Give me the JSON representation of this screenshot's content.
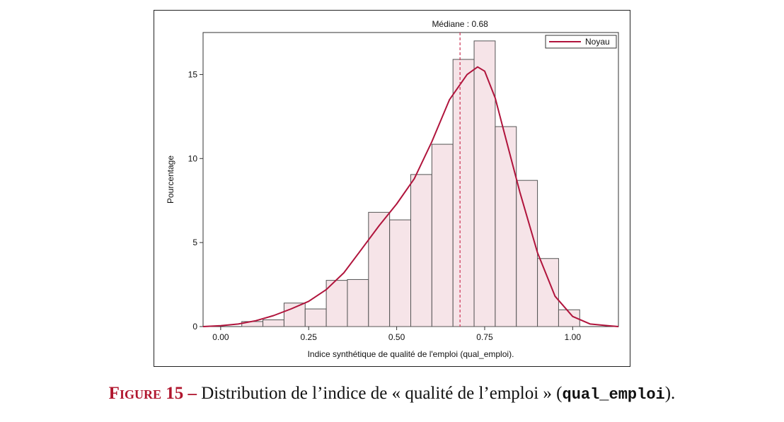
{
  "colors": {
    "bar_fill": "#f6e4e8",
    "bar_stroke": "#555555",
    "kernel_line": "#b0143c",
    "median_line": "#cc3355",
    "caption_accent": "#b0162e"
  },
  "chart_data": {
    "type": "bar",
    "subtype": "histogram",
    "title": "",
    "xlabel": "Indice synthétique de qualité de l'emploi (qual_emploi).",
    "ylabel": "Pourcentage",
    "xlim": [
      -0.05,
      1.13
    ],
    "ylim": [
      0,
      17.5
    ],
    "xticks": [
      0.0,
      0.25,
      0.5,
      0.75,
      1.0
    ],
    "xtick_labels": [
      "0.00",
      "0.25",
      "0.50",
      "0.75",
      "1.00"
    ],
    "yticks": [
      0,
      5,
      10,
      15
    ],
    "ytick_labels": [
      "0",
      "5",
      "10",
      "15"
    ],
    "grid": false,
    "legend": {
      "position": "top-right",
      "entries": [
        "Noyau"
      ]
    },
    "bins": [
      {
        "x0": 0.06,
        "x1": 0.12,
        "value": 0.3
      },
      {
        "x0": 0.12,
        "x1": 0.18,
        "value": 0.4
      },
      {
        "x0": 0.18,
        "x1": 0.24,
        "value": 1.4
      },
      {
        "x0": 0.24,
        "x1": 0.3,
        "value": 1.05
      },
      {
        "x0": 0.3,
        "x1": 0.36,
        "value": 2.75
      },
      {
        "x0": 0.36,
        "x1": 0.42,
        "value": 2.8
      },
      {
        "x0": 0.42,
        "x1": 0.48,
        "value": 6.8
      },
      {
        "x0": 0.48,
        "x1": 0.54,
        "value": 6.35
      },
      {
        "x0": 0.54,
        "x1": 0.6,
        "value": 9.05
      },
      {
        "x0": 0.6,
        "x1": 0.66,
        "value": 10.85
      },
      {
        "x0": 0.66,
        "x1": 0.72,
        "value": 15.9
      },
      {
        "x0": 0.72,
        "x1": 0.78,
        "value": 17.0
      },
      {
        "x0": 0.78,
        "x1": 0.84,
        "value": 11.9
      },
      {
        "x0": 0.84,
        "x1": 0.9,
        "value": 8.7
      },
      {
        "x0": 0.9,
        "x1": 0.96,
        "value": 4.05
      },
      {
        "x0": 0.96,
        "x1": 1.02,
        "value": 1.0
      }
    ],
    "series": [
      {
        "name": "Noyau",
        "type": "line",
        "x": [
          -0.05,
          0.0,
          0.05,
          0.1,
          0.15,
          0.2,
          0.25,
          0.3,
          0.35,
          0.4,
          0.45,
          0.5,
          0.55,
          0.6,
          0.65,
          0.7,
          0.73,
          0.75,
          0.78,
          0.8,
          0.85,
          0.9,
          0.95,
          1.0,
          1.05,
          1.1,
          1.13
        ],
        "y": [
          0.0,
          0.05,
          0.15,
          0.35,
          0.65,
          1.05,
          1.5,
          2.2,
          3.2,
          4.6,
          6.0,
          7.3,
          8.8,
          11.0,
          13.5,
          15.0,
          15.45,
          15.2,
          13.6,
          12.0,
          8.0,
          4.4,
          1.8,
          0.6,
          0.15,
          0.05,
          0.0
        ]
      }
    ],
    "annotations": [
      {
        "type": "vline",
        "x": 0.68,
        "label": "Médiane : 0.68"
      }
    ]
  },
  "caption": {
    "label": "Figure 15 –",
    "text_before": " Distribution de l’indice de « qualité de l’emploi » (",
    "variable": "qual_emploi",
    "text_after": ")."
  }
}
